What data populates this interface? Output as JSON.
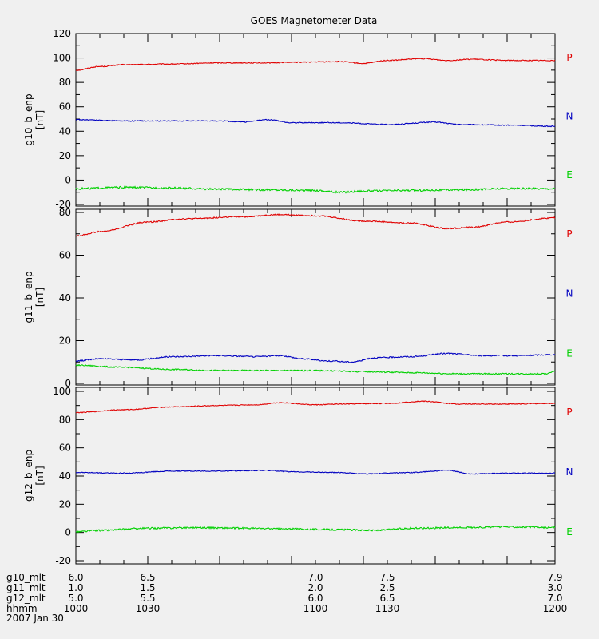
{
  "chart_data": {
    "type": "line",
    "title": "GOES Magnetometer Data",
    "date": "2007 Jan 30",
    "x_axis": {
      "range": [
        1000,
        1200
      ],
      "major_ticks": [
        1000,
        1030,
        1100,
        1130,
        1200
      ],
      "rows": [
        {
          "name": "g10_mlt",
          "values": [
            "6.0",
            "6.5",
            "7.0",
            "7.5",
            "7.9"
          ]
        },
        {
          "name": "g11_mlt",
          "values": [
            "1.0",
            "1.5",
            "2.0",
            "2.5",
            "3.0"
          ]
        },
        {
          "name": "g12_mlt",
          "values": [
            "5.0",
            "5.5",
            "6.0",
            "6.5",
            "7.0"
          ]
        },
        {
          "name": "hhmm",
          "values": [
            "1000",
            "1030",
            "1100",
            "1130",
            "1200"
          ]
        }
      ]
    },
    "panels": [
      {
        "ylabel": "g10_b_enp",
        "unit": "[nT]",
        "ylim": [
          -20,
          120
        ],
        "yticks": [
          -20,
          0,
          20,
          40,
          60,
          80,
          100,
          120
        ],
        "series": [
          {
            "name": "P",
            "color": "#e00000",
            "noise": 0.4,
            "points": [
              [
                1000,
                90
              ],
              [
                1010,
                93
              ],
              [
                1020,
                94.5
              ],
              [
                1040,
                95
              ],
              [
                1060,
                96
              ],
              [
                1080,
                96
              ],
              [
                1090,
                96.5
              ],
              [
                1110,
                97
              ],
              [
                1120,
                95.5
              ],
              [
                1130,
                98
              ],
              [
                1145,
                99.5
              ],
              [
                1155,
                98
              ],
              [
                1165,
                99
              ],
              [
                1180,
                98
              ],
              [
                1200,
                98
              ]
            ]
          },
          {
            "name": "N",
            "color": "#0000c0",
            "noise": 0.4,
            "points": [
              [
                1000,
                49.5
              ],
              [
                1020,
                48.5
              ],
              [
                1040,
                48.5
              ],
              [
                1060,
                48.5
              ],
              [
                1070,
                47.5
              ],
              [
                1080,
                49.5
              ],
              [
                1090,
                47
              ],
              [
                1110,
                47
              ],
              [
                1130,
                45.5
              ],
              [
                1150,
                47.5
              ],
              [
                1160,
                45.5
              ],
              [
                1180,
                45
              ],
              [
                1200,
                44
              ]
            ]
          },
          {
            "name": "E",
            "color": "#00d000",
            "noise": 0.8,
            "points": [
              [
                1000,
                -7
              ],
              [
                1020,
                -6
              ],
              [
                1040,
                -6.5
              ],
              [
                1060,
                -7.5
              ],
              [
                1080,
                -8
              ],
              [
                1100,
                -8.5
              ],
              [
                1110,
                -10
              ],
              [
                1120,
                -9
              ],
              [
                1140,
                -8.5
              ],
              [
                1160,
                -8
              ],
              [
                1180,
                -7
              ],
              [
                1200,
                -7
              ]
            ]
          }
        ]
      },
      {
        "ylabel": "g11_b_enp",
        "unit": "[nT]",
        "ylim": [
          0,
          80
        ],
        "yticks": [
          0,
          20,
          40,
          60,
          80
        ],
        "series": [
          {
            "name": "P",
            "color": "#e00000",
            "noise": 0.3,
            "points": [
              [
                1000,
                69
              ],
              [
                1010,
                71
              ],
              [
                1030,
                75.5
              ],
              [
                1045,
                77
              ],
              [
                1070,
                78
              ],
              [
                1085,
                79
              ],
              [
                1100,
                78.5
              ],
              [
                1120,
                76
              ],
              [
                1140,
                75
              ],
              [
                1155,
                72.5
              ],
              [
                1165,
                73
              ],
              [
                1180,
                75.5
              ],
              [
                1200,
                77.5
              ]
            ]
          },
          {
            "name": "N",
            "color": "#0000c0",
            "noise": 0.3,
            "points": [
              [
                1000,
                10.5
              ],
              [
                1010,
                11.5
              ],
              [
                1025,
                11
              ],
              [
                1040,
                12.5
              ],
              [
                1060,
                13
              ],
              [
                1075,
                12.5
              ],
              [
                1085,
                13
              ],
              [
                1095,
                11.5
              ],
              [
                1105,
                10.5
              ],
              [
                1115,
                10
              ],
              [
                1125,
                12
              ],
              [
                1140,
                12.5
              ],
              [
                1155,
                14
              ],
              [
                1170,
                13
              ],
              [
                1185,
                13
              ],
              [
                1200,
                13.5
              ]
            ]
          },
          {
            "name": "E",
            "color": "#00d000",
            "noise": 0.3,
            "points": [
              [
                1000,
                8.5
              ],
              [
                1020,
                7.5
              ],
              [
                1040,
                6.5
              ],
              [
                1060,
                6
              ],
              [
                1080,
                6
              ],
              [
                1100,
                6
              ],
              [
                1120,
                5.5
              ],
              [
                1140,
                5
              ],
              [
                1160,
                4.5
              ],
              [
                1180,
                4.5
              ],
              [
                1197,
                4.5
              ],
              [
                1200,
                6
              ]
            ]
          }
        ]
      },
      {
        "ylabel": "g12_b_enp",
        "unit": "[nT]",
        "ylim": [
          -20,
          100
        ],
        "yticks": [
          -20,
          0,
          20,
          40,
          60,
          80,
          100
        ],
        "series": [
          {
            "name": "P",
            "color": "#e00000",
            "noise": 0.3,
            "points": [
              [
                1000,
                85
              ],
              [
                1020,
                87
              ],
              [
                1040,
                89
              ],
              [
                1060,
                90
              ],
              [
                1075,
                90.5
              ],
              [
                1085,
                92
              ],
              [
                1100,
                90.5
              ],
              [
                1110,
                91
              ],
              [
                1130,
                91.5
              ],
              [
                1145,
                93
              ],
              [
                1160,
                91
              ],
              [
                1180,
                91
              ],
              [
                1200,
                91.5
              ]
            ]
          },
          {
            "name": "N",
            "color": "#0000c0",
            "noise": 0.3,
            "points": [
              [
                1000,
                42.5
              ],
              [
                1020,
                42
              ],
              [
                1040,
                43.5
              ],
              [
                1060,
                43.5
              ],
              [
                1080,
                44
              ],
              [
                1090,
                43
              ],
              [
                1110,
                42.5
              ],
              [
                1120,
                41.5
              ],
              [
                1140,
                42.5
              ],
              [
                1155,
                44
              ],
              [
                1165,
                41.5
              ],
              [
                1180,
                42
              ],
              [
                1200,
                42
              ]
            ]
          },
          {
            "name": "E",
            "color": "#00d000",
            "noise": 0.6,
            "points": [
              [
                1000,
                0.5
              ],
              [
                1010,
                1.5
              ],
              [
                1030,
                3
              ],
              [
                1050,
                3.5
              ],
              [
                1070,
                3
              ],
              [
                1090,
                2.5
              ],
              [
                1110,
                2
              ],
              [
                1125,
                1.5
              ],
              [
                1140,
                3
              ],
              [
                1160,
                3.5
              ],
              [
                1180,
                4
              ],
              [
                1200,
                3.5
              ]
            ]
          }
        ]
      }
    ]
  }
}
